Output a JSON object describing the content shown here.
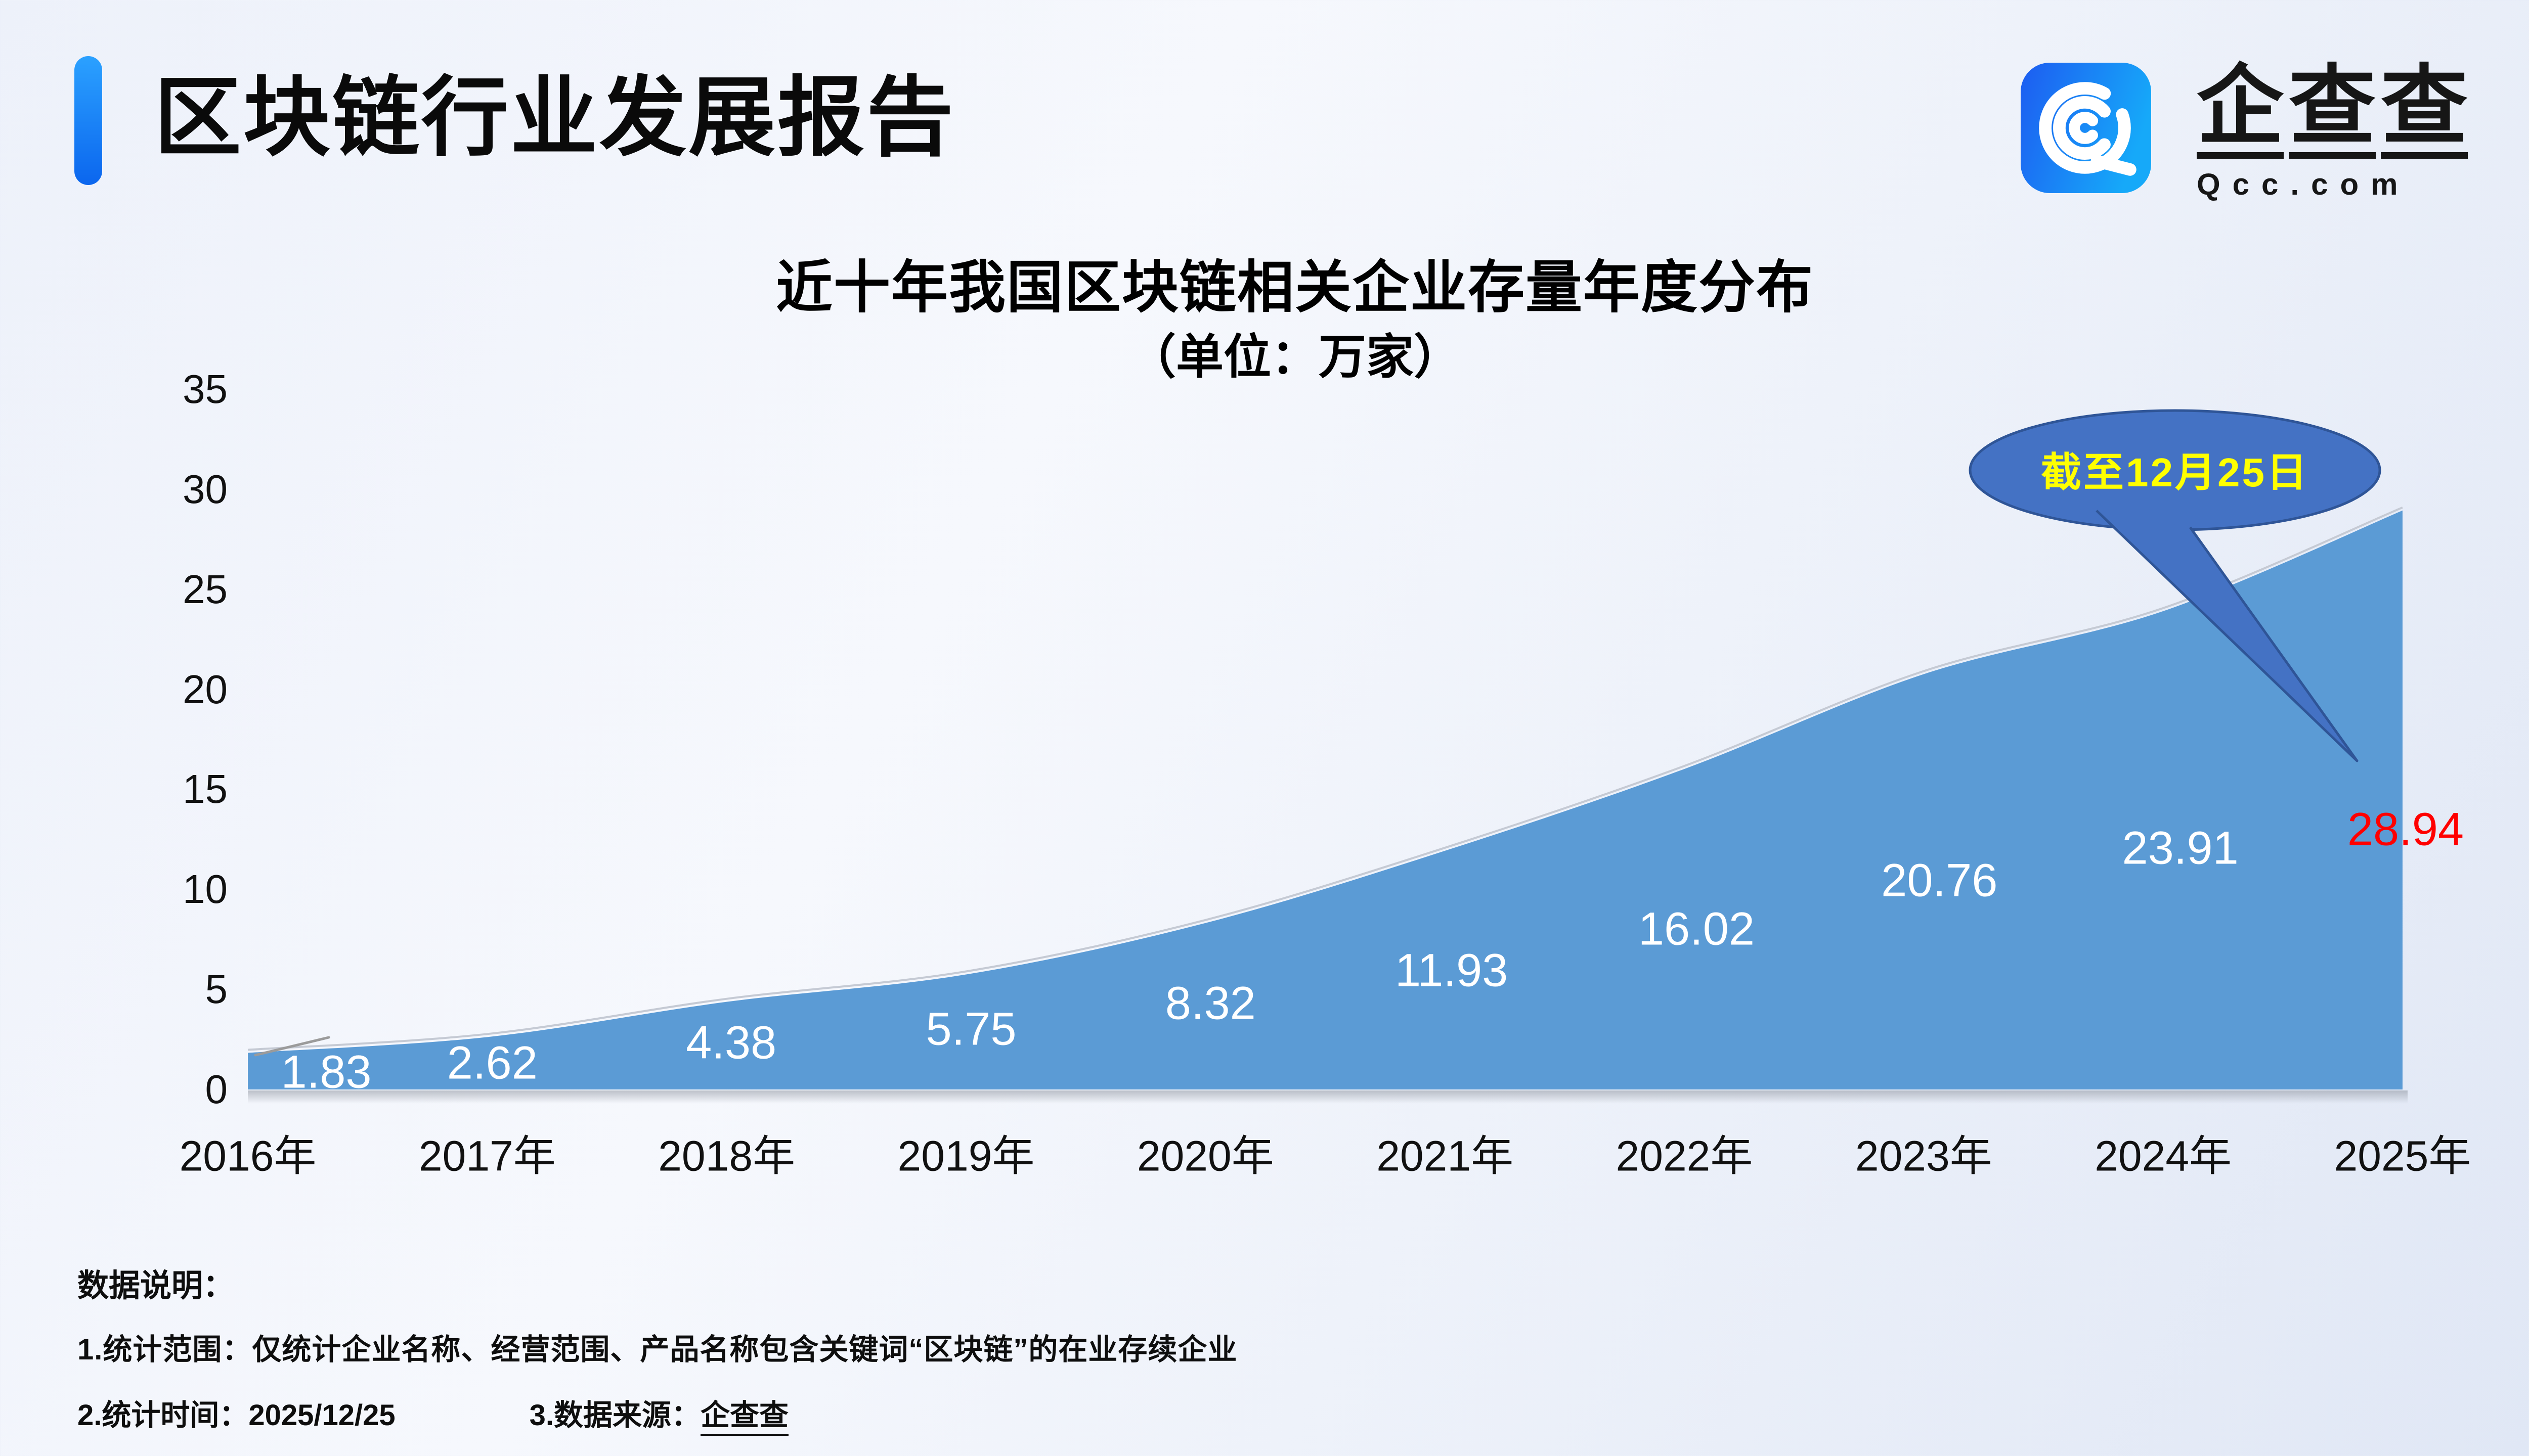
{
  "header": {
    "title": "区块链行业发展报告"
  },
  "logo": {
    "icon": "qcc-spiral-q-icon",
    "chars": [
      "企",
      "查",
      "查"
    ],
    "domain": "Qcc.com",
    "icon_color_left": "#1d5cf1",
    "icon_color_right": "#16a9f9"
  },
  "chart_data": {
    "type": "area",
    "title": "近十年我国区块链相关企业存量年度分布",
    "subtitle": "（单位：万家）",
    "unit": "万家",
    "categories": [
      "2016年",
      "2017年",
      "2018年",
      "2019年",
      "2020年",
      "2021年",
      "2022年",
      "2023年",
      "2024年",
      "2025年"
    ],
    "values": [
      1.83,
      2.62,
      4.38,
      5.75,
      8.32,
      11.93,
      16.02,
      20.76,
      23.91,
      28.94
    ],
    "yticks": [
      0,
      5,
      10,
      15,
      20,
      25,
      30,
      35
    ],
    "ylim": [
      0,
      35
    ],
    "grid": false,
    "legend": "none",
    "area_color": "#5B9BD5",
    "data_label_color": "#FFFFFF",
    "highlight_label": "28.94",
    "highlight_label_color": "#FF0000",
    "callout": {
      "text": "截至12月25日",
      "fill": "#4472C4",
      "border": "#2F5597",
      "text_color": "#FFFF00"
    }
  },
  "notes": {
    "heading": "数据说明：",
    "line1": "1.统计范围：仅统计企业名称、经营范围、产品名称包含关键词“区块链”的在业存续企业",
    "line2_time": "2.统计时间：2025/12/25",
    "line2_source_label": "3.数据来源：",
    "line2_source": "企查查"
  },
  "accent": {
    "bar_top": "#2BA1FF",
    "bar_bottom": "#0B66EE"
  }
}
